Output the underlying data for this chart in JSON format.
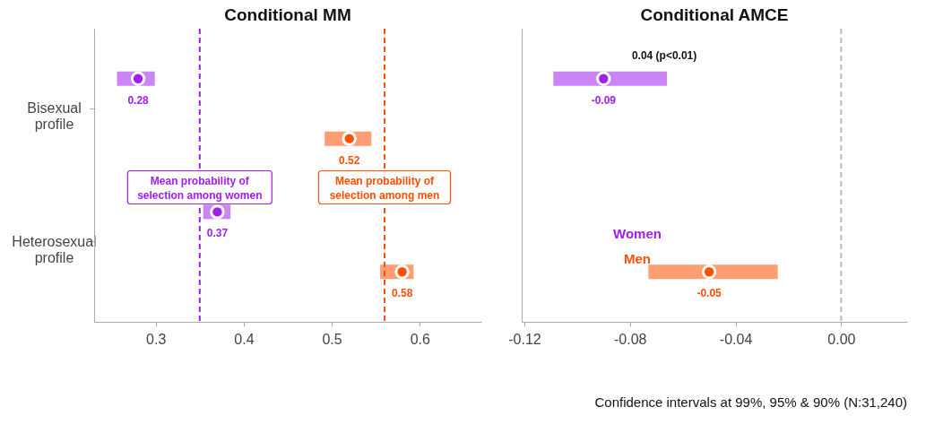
{
  "chart_data": [
    {
      "type": "scatter",
      "orientation": "horizontal",
      "title": "Conditional MM",
      "categories": [
        "Bisexual profile",
        "Heterosexual profile"
      ],
      "series": [
        {
          "color": "#a020f0",
          "values": [
            0.28,
            0.37
          ],
          "errors": [
            [
              0.256,
              0.299
            ],
            [
              0.354,
              0.385
            ]
          ],
          "value_labels": [
            "0.28",
            "0.37"
          ]
        },
        {
          "color": "#ff4f00",
          "values": [
            0.52,
            0.58
          ],
          "errors": [
            [
              0.492,
              0.545
            ],
            [
              0.555,
              0.593
            ]
          ],
          "value_labels": [
            "0.52",
            "0.58"
          ]
        }
      ],
      "xlim": [
        0.23,
        0.67
      ],
      "xticks": [
        0.3,
        0.4,
        0.5,
        0.6
      ],
      "grid": false,
      "legend": false,
      "marker": "circle",
      "ref_lines": [
        {
          "axis": "x",
          "value": 0.35,
          "label": "Mean probability of selection among women",
          "color": "#a020f0",
          "line_style": "dashed"
        },
        {
          "axis": "x",
          "value": 0.56,
          "label": "Mean probability of selection among men",
          "color": "#ff4f00",
          "line_style": "dashed"
        }
      ]
    },
    {
      "type": "scatter",
      "orientation": "horizontal",
      "title": "Conditional AMCE",
      "categories": [
        null,
        null
      ],
      "series": [
        {
          "name": "Women",
          "color": "#a020f0",
          "values": [
            -0.09,
            null
          ],
          "errors": [
            [
              -0.109,
              -0.066
            ],
            null
          ],
          "value_labels": [
            "-0.09",
            null
          ]
        },
        {
          "name": "Men",
          "color": "#ff4f00",
          "values": [
            null,
            -0.05
          ],
          "errors": [
            null,
            [
              -0.073,
              -0.024
            ]
          ],
          "value_labels": [
            null,
            "-0.05"
          ]
        }
      ],
      "xlim": [
        -0.121,
        0.025
      ],
      "xticks": [
        {
          "value": -0.12,
          "label": "-0.12"
        },
        {
          "value": -0.08,
          "label": "-0.08"
        },
        {
          "value": -0.04,
          "label": "-0.04"
        },
        {
          "value": 0,
          "label": "0.00"
        }
      ],
      "grid": false,
      "legend": "bottom left",
      "marker": "circle",
      "tick_labels": "x",
      "ref_lines": [
        {
          "axis": "x",
          "value": 0,
          "color": "#bbbbbb",
          "line_style": "dashed"
        }
      ],
      "annotations": [
        "0.04 (p<0.01)",
        "Confidence intervals at 99%, 95% & 90% (N:31,240)"
      ]
    }
  ]
}
